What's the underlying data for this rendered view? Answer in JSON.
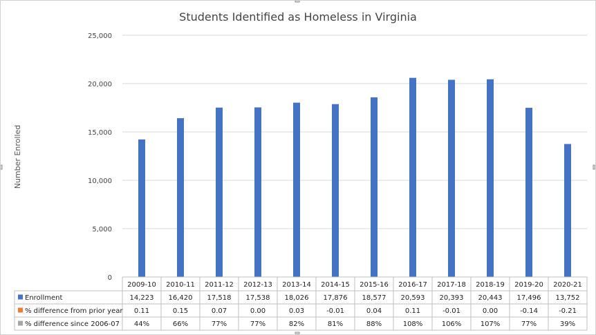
{
  "chart_data": {
    "type": "bar",
    "title": "Students Identified as Homeless in Virginia",
    "ylabel": "Number Enrolled",
    "xlabel": "",
    "ylim": [
      0,
      25000
    ],
    "yticks": [
      0,
      5000,
      10000,
      15000,
      20000,
      25000
    ],
    "ytick_labels": [
      "0",
      "5,000",
      "10,000",
      "15,000",
      "20,000",
      "25,000"
    ],
    "grid": true,
    "legend": "data-table",
    "categories": [
      "2009-10",
      "2010-11",
      "2011-12",
      "2012-13",
      "2013-14",
      "2014-15",
      "2015-16",
      "2016-17",
      "2017-18",
      "2018-19",
      "2019-20",
      "2020-21"
    ],
    "series": [
      {
        "name": "Enrollment",
        "color": "#4472C4",
        "values": [
          14223,
          16420,
          17518,
          17538,
          18026,
          17876,
          18577,
          20593,
          20393,
          20443,
          17496,
          13752
        ],
        "labels": [
          "14,223",
          "16,420",
          "17,518",
          "17,538",
          "18,026",
          "17,876",
          "18,577",
          "20,593",
          "20,393",
          "20,443",
          "17,496",
          "13,752"
        ]
      },
      {
        "name": "% difference from prior year",
        "color": "#ED7D31",
        "values": [
          0.11,
          0.15,
          0.07,
          0.0,
          0.03,
          -0.01,
          0.04,
          0.11,
          -0.01,
          0.0,
          -0.14,
          -0.21
        ],
        "labels": [
          "0.11",
          "0.15",
          "0.07",
          "0.00",
          "0.03",
          "-0.01",
          "0.04",
          "0.11",
          "-0.01",
          "0.00",
          "-0.14",
          "-0.21"
        ]
      },
      {
        "name": "% difference since 2006-07",
        "color": "#A5A5A5",
        "values": [
          44,
          66,
          77,
          77,
          82,
          81,
          88,
          108,
          106,
          107,
          77,
          39
        ],
        "labels": [
          "44%",
          "66%",
          "77%",
          "77%",
          "82%",
          "81%",
          "88%",
          "108%",
          "106%",
          "107%",
          "77%",
          "39%"
        ]
      }
    ]
  },
  "colors": {
    "gridline": "#d9d9d9",
    "table_border": "#bfbfbf"
  }
}
